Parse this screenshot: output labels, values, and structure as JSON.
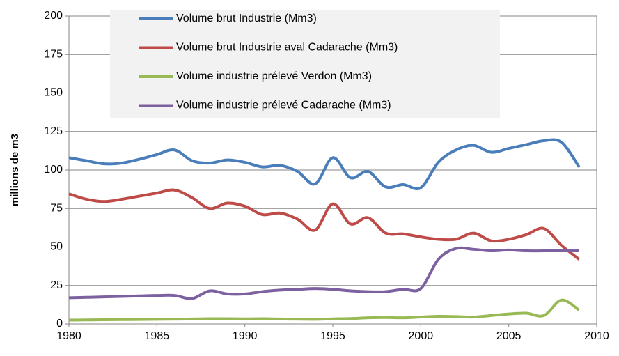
{
  "chart_data": {
    "type": "line",
    "y_label": "millions de m3",
    "x": [
      1980,
      1981,
      1982,
      1983,
      1984,
      1985,
      1986,
      1987,
      1988,
      1989,
      1990,
      1991,
      1992,
      1993,
      1994,
      1995,
      1996,
      1997,
      1998,
      1999,
      2000,
      2001,
      2002,
      2003,
      2004,
      2005,
      2006,
      2007,
      2008,
      2009
    ],
    "series": [
      {
        "name": "Volume brut Industrie (Mm3)",
        "color": "#4a7ebb",
        "values": [
          108,
          106,
          104,
          104.5,
          107,
          110,
          113,
          106,
          104.5,
          106.5,
          105,
          102,
          103,
          99,
          91,
          108,
          95,
          99,
          89,
          90.5,
          88.5,
          105,
          113,
          116,
          111.5,
          114,
          116.5,
          119,
          118,
          102
        ]
      },
      {
        "name": "Volume brut Industrie aval Cadarache (Mm3)",
        "color": "#be4b48",
        "values": [
          84.5,
          81,
          79.5,
          81,
          83,
          85,
          87,
          82,
          75,
          78.5,
          76.5,
          71,
          72,
          68,
          61,
          78,
          65,
          69,
          59,
          58.5,
          56.5,
          55,
          55,
          59,
          54,
          55,
          58,
          62,
          51,
          42
        ]
      },
      {
        "name": "Volume industrie prélevé Verdon (Mm3)",
        "color": "#98b954",
        "values": [
          2.5,
          2.6,
          2.7,
          2.8,
          2.9,
          3,
          3.1,
          3.2,
          3.4,
          3.4,
          3.3,
          3.4,
          3.2,
          3.1,
          3,
          3.3,
          3.5,
          4,
          4.2,
          4,
          4.5,
          5,
          4.8,
          4.5,
          5.5,
          6.5,
          7,
          5.5,
          15.5,
          9
        ]
      },
      {
        "name": "Volume industrie prélevé Cadarache (Mm3)",
        "color": "#7d60a0",
        "values": [
          17,
          17.3,
          17.6,
          17.9,
          18.2,
          18.5,
          18.5,
          16.5,
          21.5,
          19.5,
          19.5,
          21,
          22,
          22.5,
          23,
          22.5,
          21.5,
          21,
          21,
          22.5,
          23,
          42,
          49,
          48.5,
          47.5,
          48,
          47.5,
          47.5,
          47.5,
          47.5
        ]
      }
    ],
    "xlim": [
      1980,
      2010
    ],
    "xticks": [
      1980,
      1985,
      1990,
      1995,
      2000,
      2005,
      2010
    ],
    "ylim": [
      0,
      200
    ],
    "yticks": [
      0,
      25,
      50,
      75,
      100,
      125,
      150,
      175,
      200
    ],
    "grid": true,
    "legend": "top"
  }
}
